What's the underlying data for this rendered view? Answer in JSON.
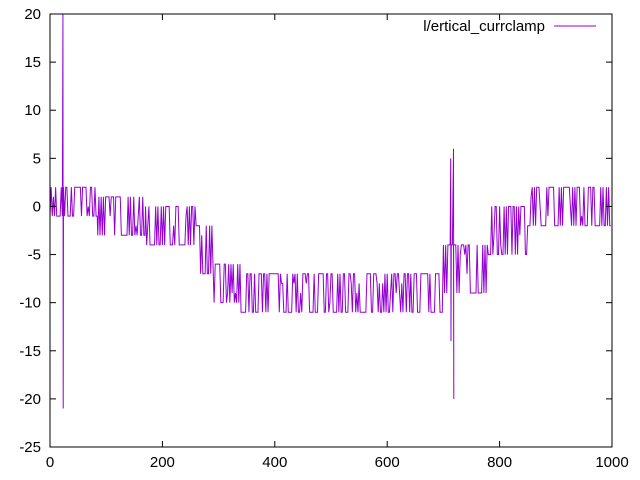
{
  "chart_data": {
    "type": "line",
    "title": "",
    "xlabel": "",
    "ylabel": "",
    "xlim": [
      0,
      1000
    ],
    "ylim": [
      -25,
      20
    ],
    "x_ticks": [
      0,
      200,
      400,
      600,
      800,
      1000
    ],
    "y_ticks": [
      -25,
      -20,
      -15,
      -10,
      -5,
      0,
      5,
      10,
      15,
      20
    ],
    "x_tick_labels": [
      "0",
      "200",
      "400",
      "600",
      "800",
      "1000"
    ],
    "y_tick_labels": [
      "-25",
      "-20",
      "-15",
      "-10",
      "-5",
      "0",
      "5",
      "10",
      "15",
      "20"
    ],
    "grid": false,
    "legend_position": "top-right",
    "series": [
      {
        "name": "l/ertical_currclamp",
        "color": "#9400d3",
        "style": "noisy square signal between two levels",
        "segments": [
          {
            "x_start": 0,
            "x_end": 85,
            "low": -1,
            "high": 2
          },
          {
            "x_start": 85,
            "x_end": 170,
            "low": -3,
            "high": 1
          },
          {
            "x_start": 170,
            "x_end": 260,
            "low": -4,
            "high": 0
          },
          {
            "x_start": 260,
            "x_end": 290,
            "low": -7,
            "high": -2
          },
          {
            "x_start": 290,
            "x_end": 340,
            "low": -10,
            "high": -6
          },
          {
            "x_start": 340,
            "x_end": 700,
            "low": -11,
            "high": -7
          },
          {
            "x_start": 700,
            "x_end": 780,
            "low": -9,
            "high": -4
          },
          {
            "x_start": 780,
            "x_end": 850,
            "low": -5,
            "high": 0
          },
          {
            "x_start": 850,
            "x_end": 1000,
            "low": -2,
            "high": 2
          }
        ],
        "spikes": [
          {
            "x": 23,
            "low": -21,
            "high": 20
          },
          {
            "x": 713,
            "low": -14,
            "high": 5
          },
          {
            "x": 718,
            "low": -20,
            "high": 6
          }
        ]
      }
    ]
  }
}
